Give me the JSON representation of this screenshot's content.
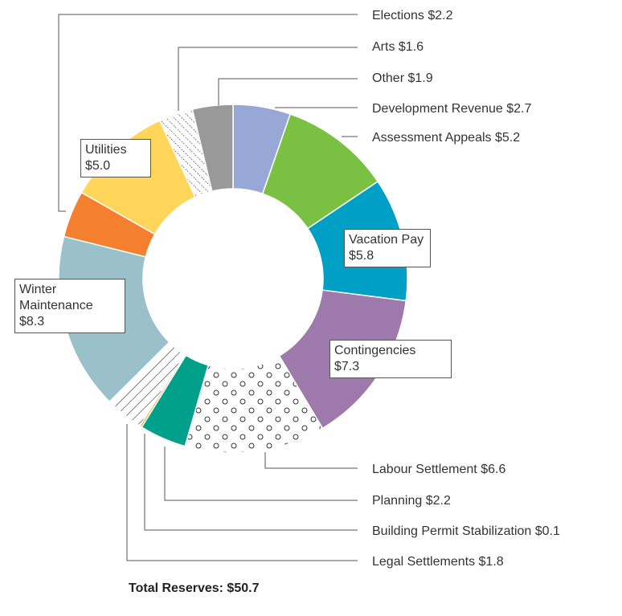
{
  "chart_data": {
    "type": "donut",
    "title": "Total Reserves: $50.7",
    "categories": [
      "Development Revenue",
      "Assessment Appeals",
      "Vacation Pay",
      "Contingencies",
      "Labour Settlement",
      "Planning",
      "Building Permit Stabilization",
      "Legal Settlements",
      "Winter Maintenance",
      "Elections",
      "Utilities",
      "Arts",
      "Other"
    ],
    "values": [
      2.7,
      5.2,
      5.8,
      7.3,
      6.6,
      2.2,
      0.1,
      1.8,
      8.3,
      2.2,
      5.0,
      1.6,
      1.9
    ],
    "value_labels": [
      "$2.7",
      "$5.2",
      "$5.8",
      "$7.3",
      "$6.6",
      "$2.2",
      "$0.1",
      "$1.8",
      "$8.3",
      "$2.2",
      "$5.0",
      "$1.6",
      "$1.9"
    ],
    "colors": [
      "#97a7d6",
      "#7ac143",
      "#00a0c6",
      "#9e79ab",
      "#ffffff",
      "#00a08a",
      "#f7a21b",
      "#ffffff",
      "#9ac0c9",
      "#f47f2f",
      "#ffd65a",
      "#ffffff",
      "#999999"
    ],
    "patterns": [
      "solid",
      "solid",
      "solid",
      "solid",
      "dots",
      "solid",
      "solid",
      "hatch",
      "solid",
      "solid",
      "solid",
      "dashes",
      "solid"
    ]
  }
}
